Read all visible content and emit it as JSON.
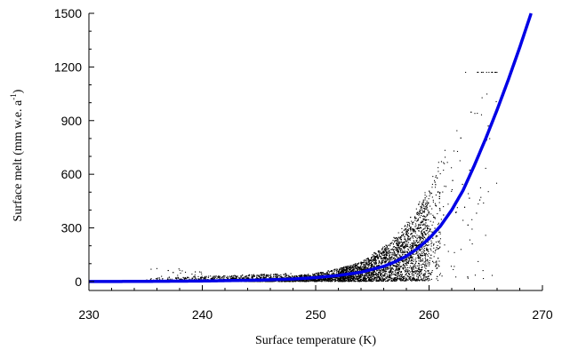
{
  "chart_data": {
    "type": "scatter",
    "xlabel": "Surface temperature (K)",
    "ylabel_main": "Surface melt (mm w.e. a",
    "ylabel_sup": "-1",
    "ylabel_close": ")",
    "xlim": [
      230,
      270
    ],
    "ylim": [
      -50,
      1500
    ],
    "x_ticks": [
      230,
      240,
      250,
      260,
      270
    ],
    "y_ticks": [
      0,
      300,
      600,
      900,
      1200,
      1500
    ],
    "grid": false,
    "legend": "none",
    "series": [
      {
        "kind": "points",
        "color": "#000000",
        "point_count": 5200,
        "x_range": [
          235,
          266
        ],
        "y_range": [
          0,
          1170
        ]
      },
      {
        "kind": "fit-curve",
        "color": "#0000e6",
        "x": [
          230,
          235,
          240,
          245,
          248,
          250,
          252,
          254,
          256,
          257,
          258,
          259,
          260,
          261,
          262,
          263,
          264,
          265,
          266,
          267,
          268,
          269
        ],
        "y": [
          0,
          1,
          3,
          8,
          14,
          22,
          34,
          52,
          85,
          110,
          142,
          185,
          240,
          310,
          400,
          510,
          650,
          800,
          960,
          1130,
          1310,
          1500
        ]
      }
    ]
  }
}
